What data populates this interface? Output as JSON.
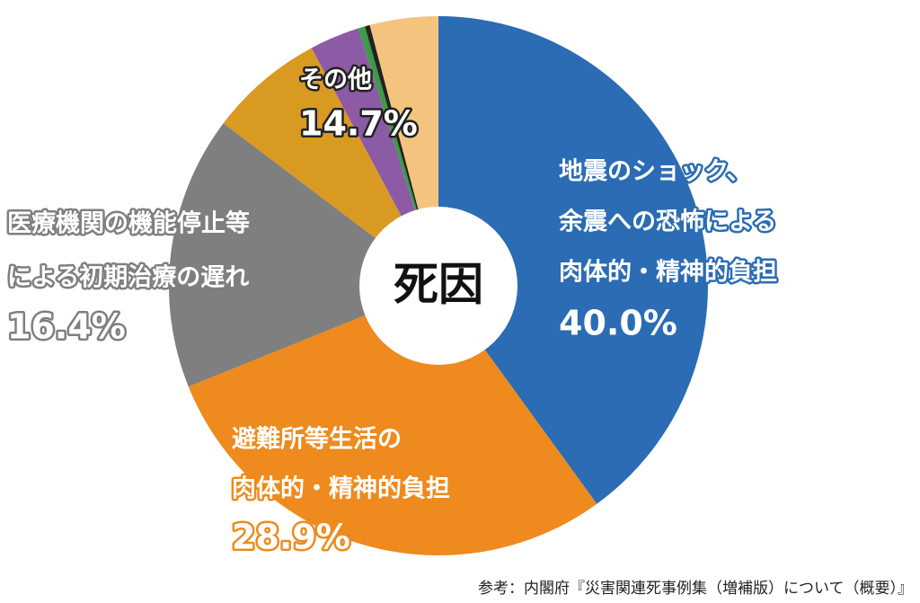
{
  "chart_data": {
    "type": "pie",
    "center_label": "死因",
    "categories": [
      [
        "地震のショック、",
        "余震への恐怖による",
        "肉体的・精神的負担"
      ],
      [
        "避難所等生活の",
        "肉体的・精神的負担"
      ],
      [
        "医療機関の機能停止等",
        "による初期治療の遅れ"
      ],
      [
        "その他"
      ]
    ],
    "values": [
      40.0,
      28.9,
      16.4,
      14.7
    ],
    "value_labels": [
      "40.0%",
      "28.9%",
      "16.4%",
      "14.7%"
    ],
    "colors": [
      "#2b6cb4",
      "#ee8a1e",
      "#7f7f7f",
      null
    ],
    "other_parts": [
      {
        "value": 6.9,
        "color": "#d99a22"
      },
      {
        "value": 3.0,
        "color": "#8d5aa6"
      },
      {
        "value": 0.4,
        "color": "#3d9b48"
      },
      {
        "value": 0.3,
        "color": "#222222"
      },
      {
        "value": 4.1,
        "color": "#f4c47f"
      }
    ],
    "source": "参考：内閣府『災害関連死事例集（増補版）について（概要）』"
  }
}
